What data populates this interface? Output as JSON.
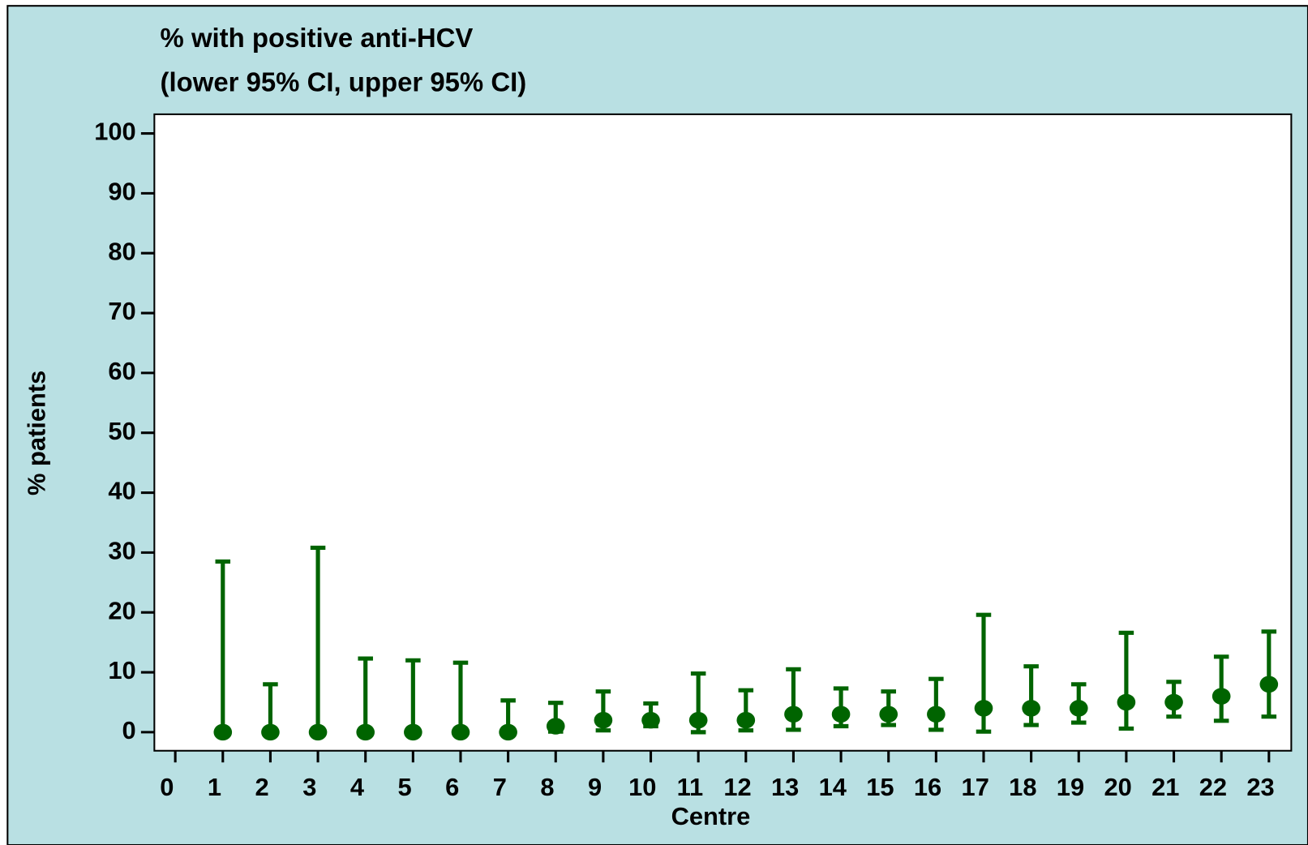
{
  "chart_data": {
    "type": "errorbar",
    "title": "% with positive anti-HCV",
    "subtitle": "(lower 95% CI, upper 95% CI)",
    "x_label": "Centre",
    "y_label": "% patients",
    "x": [
      1,
      2,
      3,
      4,
      5,
      6,
      7,
      8,
      9,
      10,
      11,
      12,
      13,
      14,
      15,
      16,
      17,
      18,
      19,
      20,
      21,
      22,
      23
    ],
    "series": [
      {
        "color": "#006400",
        "values": [
          0,
          0,
          0,
          0,
          0,
          0,
          0,
          1,
          2,
          2,
          2,
          2,
          3,
          3,
          3,
          3,
          4,
          4,
          4,
          5,
          5,
          6,
          8
        ],
        "lower": [
          0,
          0,
          0,
          0,
          0,
          0,
          0,
          0.1,
          0.3,
          1,
          0,
          0.3,
          0.4,
          1,
          1.2,
          0.4,
          0.1,
          1.2,
          1.6,
          0.6,
          2.6,
          1.9,
          2.6
        ],
        "upper": [
          28.5,
          8,
          30.8,
          12.3,
          12,
          11.6,
          5.3,
          4.9,
          6.8,
          4.8,
          9.8,
          7,
          10.5,
          7.3,
          6.8,
          8.9,
          19.6,
          11,
          8,
          16.6,
          8.4,
          12.6,
          16.8
        ]
      }
    ],
    "xlim": [
      -0.44,
      23.47
    ],
    "ylim": [
      -3.1,
      103.2
    ],
    "xticks": [
      0,
      1,
      2,
      3,
      4,
      5,
      6,
      7,
      8,
      9,
      10,
      11,
      12,
      13,
      14,
      15,
      16,
      17,
      18,
      19,
      20,
      21,
      22,
      23
    ],
    "yticks": [
      0,
      10,
      20,
      30,
      40,
      50,
      60,
      70,
      80,
      90,
      100
    ]
  }
}
